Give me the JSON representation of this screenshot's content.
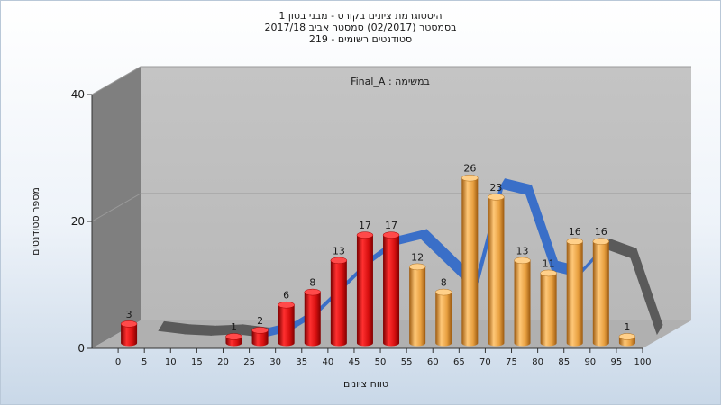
{
  "chart_data": {
    "type": "bar",
    "title_lines": [
      "היסטוגרמת ציונים בקורס - מבני בטון 1",
      "בסמסטר  (02/2017)  סמסטר אביב 2017/18",
      "סטודנטים רשומים - 219"
    ],
    "annotation": "במשימה : Final_A",
    "xlabel": "טווח ציונים",
    "ylabel": "מספר סטודנטים",
    "ylim": [
      0,
      40
    ],
    "yticks": [
      0,
      20,
      40
    ],
    "x_tick_labels": [
      "0",
      "5",
      "10",
      "15",
      "20",
      "25",
      "30",
      "35",
      "40",
      "45",
      "50",
      "55",
      "60",
      "65",
      "70",
      "75",
      "80",
      "85",
      "90",
      "95",
      "100"
    ],
    "bars": [
      {
        "bin": 0,
        "value": 3,
        "color": "red"
      },
      {
        "bin": 5,
        "value": 0,
        "color": "red"
      },
      {
        "bin": 10,
        "value": 0,
        "color": "red"
      },
      {
        "bin": 15,
        "value": 0,
        "color": "red"
      },
      {
        "bin": 20,
        "value": 1,
        "color": "red"
      },
      {
        "bin": 25,
        "value": 2,
        "color": "red"
      },
      {
        "bin": 30,
        "value": 6,
        "color": "red"
      },
      {
        "bin": 35,
        "value": 8,
        "color": "red"
      },
      {
        "bin": 40,
        "value": 13,
        "color": "red"
      },
      {
        "bin": 45,
        "value": 17,
        "color": "red"
      },
      {
        "bin": 50,
        "value": 17,
        "color": "red"
      },
      {
        "bin": 55,
        "value": 12,
        "color": "orange"
      },
      {
        "bin": 60,
        "value": 8,
        "color": "orange"
      },
      {
        "bin": 65,
        "value": 26,
        "color": "orange"
      },
      {
        "bin": 70,
        "value": 23,
        "color": "orange"
      },
      {
        "bin": 75,
        "value": 13,
        "color": "orange"
      },
      {
        "bin": 80,
        "value": 11,
        "color": "orange"
      },
      {
        "bin": 85,
        "value": 16,
        "color": "orange"
      },
      {
        "bin": 90,
        "value": 16,
        "color": "orange"
      },
      {
        "bin": 95,
        "value": 1,
        "color": "orange"
      }
    ],
    "trend_line": {
      "x": [
        5,
        10,
        15,
        20,
        25,
        30,
        35,
        40,
        45,
        50,
        55,
        60,
        65,
        70,
        75,
        80,
        85,
        90,
        95,
        100
      ],
      "y": [
        2.5,
        2,
        1.8,
        2,
        1.5,
        2.5,
        5,
        9,
        13,
        16,
        17,
        13,
        9,
        25,
        24,
        12,
        11,
        15.5,
        14,
        2
      ]
    },
    "colors": {
      "red": "#e01818",
      "orange": "#f0a84a",
      "trend_blue": "#3a6fc8",
      "trend_grey": "#5a5a5a",
      "back_wall": "#c0c0c0",
      "side_wall": "#808080",
      "floor": "#b4b4b4"
    },
    "grid": true
  }
}
